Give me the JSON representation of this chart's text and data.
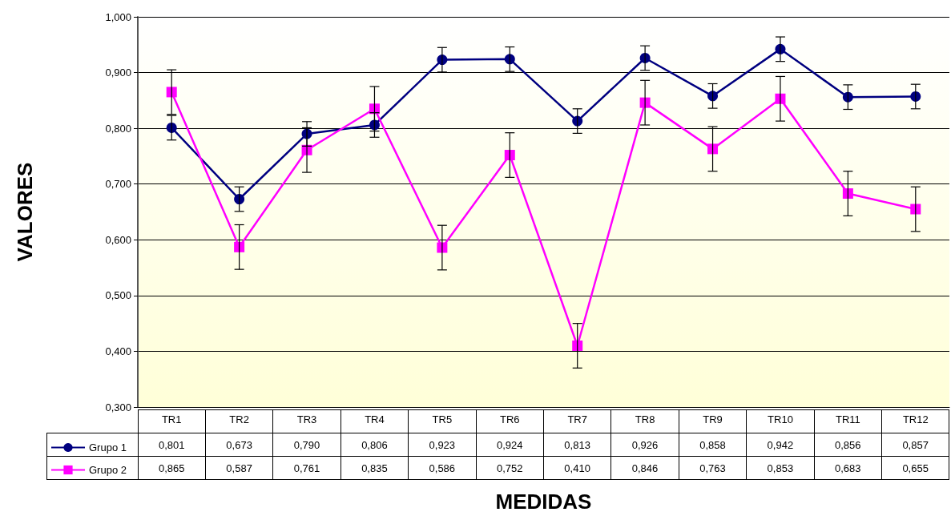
{
  "chart_data": {
    "type": "line",
    "xlabel": "MEDIDAS",
    "ylabel": "VALORES",
    "categories": [
      "TR1",
      "TR2",
      "TR3",
      "TR4",
      "TR5",
      "TR6",
      "TR7",
      "TR8",
      "TR9",
      "TR10",
      "TR11",
      "TR12"
    ],
    "series": [
      {
        "name": "Grupo 1",
        "color": "#000080",
        "marker": "circle",
        "values": [
          0.801,
          0.673,
          0.79,
          0.806,
          0.923,
          0.924,
          0.813,
          0.926,
          0.858,
          0.942,
          0.856,
          0.857
        ],
        "value_labels": [
          "0,801",
          "0,673",
          "0,790",
          "0,806",
          "0,923",
          "0,924",
          "0,813",
          "0,926",
          "0,858",
          "0,942",
          "0,856",
          "0,857"
        ],
        "errors": [
          0.022,
          0.022,
          0.022,
          0.022,
          0.022,
          0.022,
          0.022,
          0.022,
          0.022,
          0.022,
          0.022,
          0.022
        ]
      },
      {
        "name": "Grupo 2",
        "color": "#ff00ff",
        "marker": "square",
        "values": [
          0.865,
          0.587,
          0.761,
          0.835,
          0.586,
          0.752,
          0.41,
          0.846,
          0.763,
          0.853,
          0.683,
          0.655
        ],
        "value_labels": [
          "0,865",
          "0,587",
          "0,761",
          "0,835",
          "0,586",
          "0,752",
          "0,410",
          "0,846",
          "0,763",
          "0,853",
          "0,683",
          "0,655"
        ],
        "errors": [
          0.04,
          0.04,
          0.04,
          0.04,
          0.04,
          0.04,
          0.04,
          0.04,
          0.04,
          0.04,
          0.04,
          0.04
        ]
      }
    ],
    "ylim": [
      0.3,
      1.0
    ],
    "yticks": [
      {
        "value": 0.3,
        "label": "0,300"
      },
      {
        "value": 0.4,
        "label": "0,400"
      },
      {
        "value": 0.5,
        "label": "0,500"
      },
      {
        "value": 0.6,
        "label": "0,600"
      },
      {
        "value": 0.7,
        "label": "0,700"
      },
      {
        "value": 0.8,
        "label": "0,800"
      },
      {
        "value": 0.9,
        "label": "0,900"
      },
      {
        "value": 1.0,
        "label": "1,000"
      }
    ],
    "grid": "y",
    "legend": "bottom left",
    "line_style": "solid"
  }
}
